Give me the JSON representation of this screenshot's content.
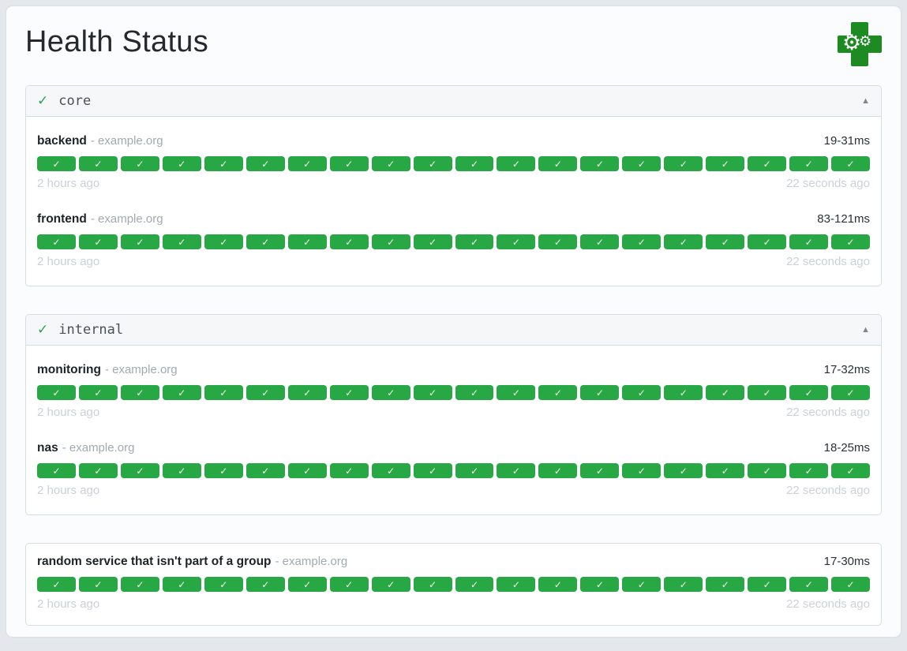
{
  "page": {
    "title": "Health Status"
  },
  "icons": {
    "logo": "medical-cross-with-gears",
    "logo_gear_glyph": "⚙",
    "group_check_glyph": "✓",
    "badge_check_glyph": "✓",
    "caret_up_glyph": "▲"
  },
  "colors": {
    "badge_green": "#28a745",
    "logo_green": "#1d8a22",
    "check_green": "#2ea44f"
  },
  "groups": [
    {
      "name": "core",
      "has_header": true,
      "collapsed": false,
      "services": [
        {
          "name": "backend",
          "separator": "-",
          "host": "example.org",
          "response_time": "19-31ms",
          "oldest": "2 hours ago",
          "newest": "22 seconds ago",
          "results": {
            "count": 20,
            "status": "success"
          }
        },
        {
          "name": "frontend",
          "separator": "-",
          "host": "example.org",
          "response_time": "83-121ms",
          "oldest": "2 hours ago",
          "newest": "22 seconds ago",
          "results": {
            "count": 20,
            "status": "success"
          }
        }
      ]
    },
    {
      "name": "internal",
      "has_header": true,
      "collapsed": false,
      "services": [
        {
          "name": "monitoring",
          "separator": "-",
          "host": "example.org",
          "response_time": "17-32ms",
          "oldest": "2 hours ago",
          "newest": "22 seconds ago",
          "results": {
            "count": 20,
            "status": "success"
          }
        },
        {
          "name": "nas",
          "separator": "-",
          "host": "example.org",
          "response_time": "18-25ms",
          "oldest": "2 hours ago",
          "newest": "22 seconds ago",
          "results": {
            "count": 20,
            "status": "success"
          }
        }
      ]
    },
    {
      "name": "",
      "has_header": false,
      "collapsed": false,
      "services": [
        {
          "name": "random service that isn't part of a group",
          "separator": "-",
          "host": "example.org",
          "response_time": "17-30ms",
          "oldest": "2 hours ago",
          "newest": "22 seconds ago",
          "results": {
            "count": 20,
            "status": "success"
          }
        }
      ]
    }
  ]
}
